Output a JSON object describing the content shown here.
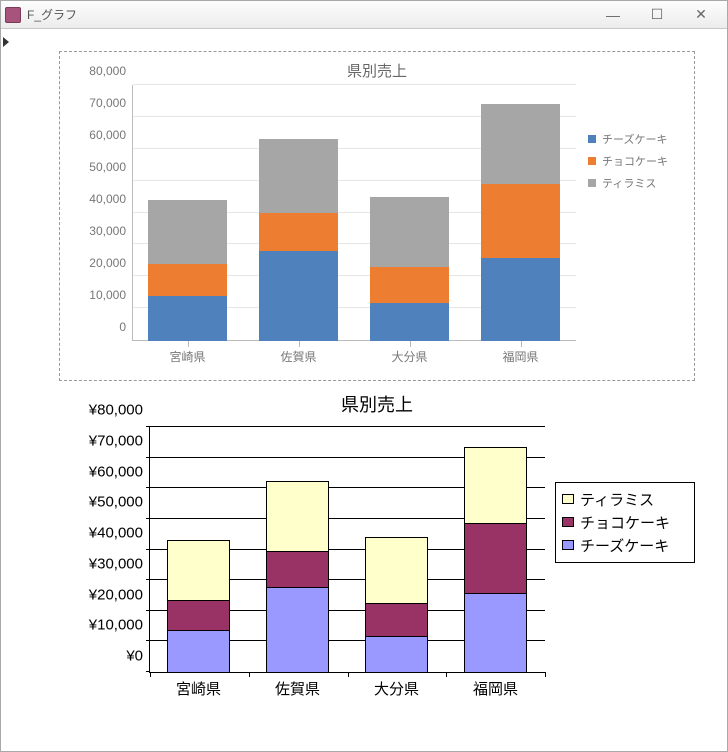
{
  "window": {
    "title": "F_グラフ",
    "minimize_label": "—",
    "maximize_label": "☐",
    "close_label": "✕"
  },
  "chart1": {
    "type": "stacked-bar",
    "title": "県別売上",
    "ylim": [
      0,
      80000
    ],
    "ytick_step": 10000,
    "ytick_labels": [
      "0",
      "10,000",
      "20,000",
      "30,000",
      "40,000",
      "50,000",
      "60,000",
      "70,000",
      "80,000"
    ],
    "categories": [
      "宮崎県",
      "佐賀県",
      "大分県",
      "福岡県"
    ],
    "series": [
      {
        "name": "チーズケーキ",
        "color": "#4f81bd",
        "values": [
          14000,
          28000,
          12000,
          26000
        ]
      },
      {
        "name": "チョコケーキ",
        "color": "#ed7d31",
        "values": [
          10000,
          12000,
          11000,
          23000
        ]
      },
      {
        "name": "ティラミス",
        "color": "#a6a6a6",
        "values": [
          20000,
          23000,
          22000,
          25000
        ]
      }
    ],
    "grid_color": "#e6e6e6",
    "axis_color": "#bbbbbb",
    "tick_font_color": "#777777"
  },
  "chart2": {
    "type": "stacked-bar",
    "title": "県別売上",
    "ylim": [
      0,
      80000
    ],
    "ytick_step": 10000,
    "ytick_labels": [
      "¥0",
      "¥10,000",
      "¥20,000",
      "¥30,000",
      "¥40,000",
      "¥50,000",
      "¥60,000",
      "¥70,000",
      "¥80,000"
    ],
    "categories": [
      "宮崎県",
      "佐賀県",
      "大分県",
      "福岡県"
    ],
    "legend_order": [
      "ティラミス",
      "チョコケーキ",
      "チーズケーキ"
    ],
    "series": [
      {
        "name": "チーズケーキ",
        "color": "#9999ff",
        "values": [
          14000,
          28000,
          12000,
          26000
        ]
      },
      {
        "name": "チョコケーキ",
        "color": "#993366",
        "values": [
          10000,
          12000,
          11000,
          23000
        ]
      },
      {
        "name": "ティラミス",
        "color": "#ffffcc",
        "values": [
          20000,
          23000,
          22000,
          25000
        ]
      }
    ],
    "grid_color": "#000000",
    "axis_color": "#000000"
  }
}
